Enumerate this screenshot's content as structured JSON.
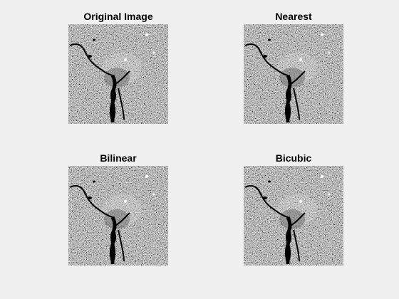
{
  "figure": {
    "background": "#f0f0f0",
    "panels": [
      {
        "title": "Original Image"
      },
      {
        "title": "Nearest"
      },
      {
        "title": "Bilinear"
      },
      {
        "title": "Bicubic"
      }
    ],
    "image_content": "grayscale satellite/aerial photo of a city with a dark river running through it"
  }
}
